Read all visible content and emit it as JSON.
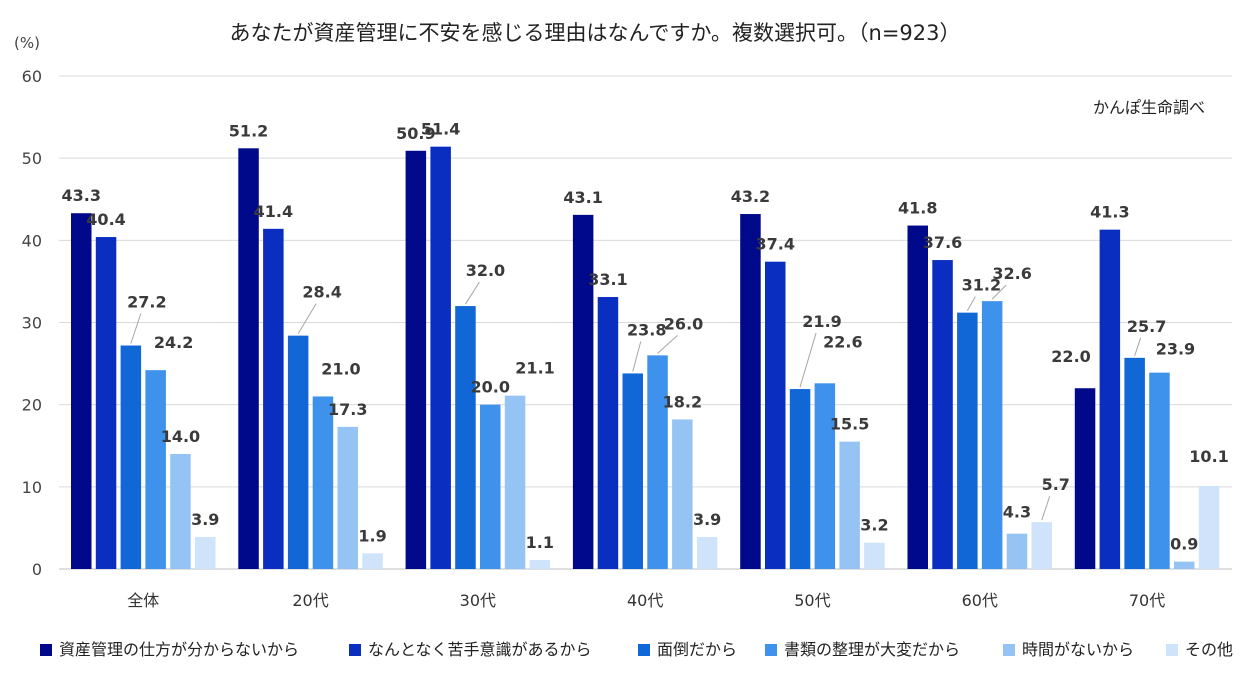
{
  "chart_data": {
    "type": "bar",
    "title": "あなたが資産管理に不安を感じる理由はなんですか。複数選択可。（n=923）",
    "ylabel": "(%)",
    "ylim": [
      0,
      60
    ],
    "yticks": [
      0,
      10,
      20,
      30,
      40,
      50,
      60
    ],
    "source_note": "かんぽ生命調べ",
    "categories": [
      "全体",
      "20代",
      "30代",
      "40代",
      "50代",
      "60代",
      "70代"
    ],
    "series": [
      {
        "name": "資産管理の仕方が分からないから",
        "color": "#00098a",
        "values": [
          43.3,
          51.2,
          50.9,
          43.1,
          43.2,
          41.8,
          22.0
        ]
      },
      {
        "name": "なんとなく苦手意識があるから",
        "color": "#0a2ec0",
        "values": [
          40.4,
          41.4,
          51.4,
          33.1,
          37.4,
          37.6,
          41.3
        ]
      },
      {
        "name": "面倒だから",
        "color": "#1267d6",
        "values": [
          27.2,
          28.4,
          32.0,
          23.8,
          21.9,
          31.2,
          25.7
        ]
      },
      {
        "name": "書類の整理が大変だから",
        "color": "#3f92ec",
        "values": [
          24.2,
          21.0,
          20.0,
          26.0,
          22.6,
          32.6,
          23.9
        ]
      },
      {
        "name": "時間がないから",
        "color": "#95c4f4",
        "values": [
          14.0,
          17.3,
          21.1,
          18.2,
          15.5,
          4.3,
          0.9
        ]
      },
      {
        "name": "その他",
        "color": "#cfe3fa",
        "values": [
          3.9,
          1.9,
          1.1,
          3.9,
          3.2,
          5.7,
          10.1
        ]
      }
    ],
    "legend_position": "bottom",
    "grid": true
  }
}
